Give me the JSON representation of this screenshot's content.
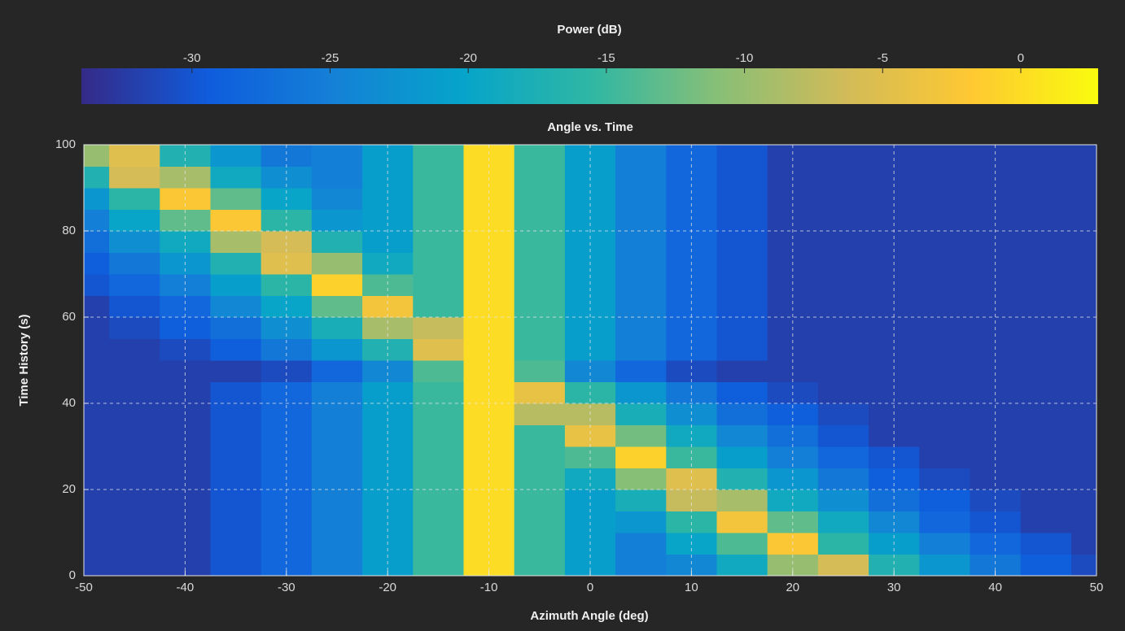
{
  "chart_data": {
    "type": "heatmap",
    "title": "Angle vs. Time",
    "xlabel": "Azimuth Angle (deg)",
    "ylabel": "Time History (s)",
    "x": [
      -50,
      -45,
      -40,
      -35,
      -30,
      -25,
      -20,
      -15,
      -10,
      -5,
      0,
      5,
      10,
      15,
      20,
      25,
      30,
      35,
      40,
      45,
      50
    ],
    "y": [
      2.5,
      7.5,
      12.5,
      17.5,
      22.5,
      27.5,
      32.5,
      37.5,
      42.5,
      47.5,
      52.5,
      57.5,
      62.5,
      67.5,
      72.5,
      77.5,
      82.5,
      87.5,
      92.5,
      97.5
    ],
    "z": [
      [
        -32,
        -32,
        -32,
        -30,
        -28,
        -25,
        -21,
        -15,
        0,
        -15,
        -21,
        -25,
        -24,
        -19,
        -10,
        -6,
        -17,
        -22,
        -26,
        -29,
        -31
      ],
      [
        -32,
        -32,
        -32,
        -30,
        -28,
        -25,
        -21,
        -15,
        0,
        -15,
        -21,
        -25,
        -20,
        -14,
        -2,
        -16,
        -21,
        -25,
        -28,
        -30,
        -32
      ],
      [
        -32,
        -32,
        -32,
        -30,
        -28,
        -25,
        -21,
        -15,
        0,
        -15,
        -21,
        -22,
        -16,
        -3,
        -13,
        -19,
        -24,
        -28,
        -30,
        -32,
        -32
      ],
      [
        -32,
        -32,
        -32,
        -30,
        -28,
        -25,
        -21,
        -15,
        0,
        -15,
        -21,
        -18,
        -7,
        -9,
        -19,
        -23,
        -27,
        -29,
        -31,
        -32,
        -32
      ],
      [
        -32,
        -32,
        -32,
        -30,
        -28,
        -25,
        -21,
        -15,
        0,
        -15,
        -19,
        -11,
        -5,
        -17,
        -22,
        -26,
        -29,
        -31,
        -32,
        -32,
        -32
      ],
      [
        -32,
        -32,
        -32,
        -30,
        -28,
        -25,
        -21,
        -15,
        0,
        -15,
        -14,
        -1,
        -15,
        -21,
        -25,
        -28,
        -30,
        -32,
        -32,
        -32,
        -32
      ],
      [
        -32,
        -32,
        -32,
        -30,
        -28,
        -25,
        -21,
        -15,
        0,
        -15,
        -4,
        -12,
        -19,
        -24,
        -27,
        -30,
        -32,
        -32,
        -32,
        -32,
        -32
      ],
      [
        -32,
        -32,
        -32,
        -30,
        -28,
        -25,
        -21,
        -15,
        0,
        -8,
        -8,
        -18,
        -23,
        -27,
        -29,
        -31,
        -32,
        -32,
        -32,
        -32,
        -32
      ],
      [
        -32,
        -32,
        -32,
        -30,
        -28,
        -25,
        -21,
        -15,
        0,
        -4,
        -16,
        -22,
        -26,
        -29,
        -31,
        -32,
        -32,
        -32,
        -32,
        -32,
        -32
      ],
      [
        -32,
        -32,
        -32,
        -32,
        -31,
        -28,
        -24,
        -14,
        0,
        -14,
        -24,
        -28,
        -31,
        -32,
        -32,
        -32,
        -32,
        -32,
        -32,
        -32,
        -32
      ],
      [
        -32,
        -32,
        -31,
        -29,
        -26,
        -22,
        -17,
        -5,
        0,
        -15,
        -21,
        -25,
        -28,
        -30,
        -32,
        -32,
        -32,
        -32,
        -32,
        -32,
        -32
      ],
      [
        -32,
        -31,
        -29,
        -27,
        -23,
        -18,
        -9,
        -7,
        0,
        -15,
        -21,
        -25,
        -28,
        -30,
        -32,
        -32,
        -32,
        -32,
        -32,
        -32,
        -32
      ],
      [
        -32,
        -30,
        -28,
        -24,
        -20,
        -13,
        -3,
        -15,
        0,
        -15,
        -21,
        -25,
        -28,
        -30,
        -32,
        -32,
        -32,
        -32,
        -32,
        -32,
        -32
      ],
      [
        -30,
        -28,
        -25,
        -21,
        -16,
        -1,
        -14,
        -15,
        0,
        -15,
        -21,
        -25,
        -28,
        -30,
        -32,
        -32,
        -32,
        -32,
        -32,
        -32,
        -32
      ],
      [
        -29,
        -26,
        -22,
        -17,
        -5,
        -10,
        -19,
        -15,
        0,
        -15,
        -21,
        -25,
        -28,
        -30,
        -32,
        -32,
        -32,
        -32,
        -32,
        -32,
        -32
      ],
      [
        -27,
        -23,
        -19,
        -9,
        -6,
        -17,
        -21,
        -15,
        0,
        -15,
        -21,
        -25,
        -28,
        -30,
        -32,
        -32,
        -32,
        -32,
        -32,
        -32,
        -32
      ],
      [
        -25,
        -20,
        -13,
        -2,
        -16,
        -22,
        -21,
        -15,
        0,
        -15,
        -21,
        -25,
        -28,
        -30,
        -32,
        -32,
        -32,
        -32,
        -32,
        -32,
        -32
      ],
      [
        -22,
        -16,
        -2,
        -13,
        -20,
        -24,
        -21,
        -15,
        0,
        -15,
        -21,
        -25,
        -28,
        -30,
        -32,
        -32,
        -32,
        -32,
        -32,
        -32,
        -32
      ],
      [
        -17,
        -6,
        -9,
        -19,
        -23,
        -25,
        -21,
        -15,
        0,
        -15,
        -21,
        -25,
        -28,
        -30,
        -32,
        -32,
        -32,
        -32,
        -32,
        -32,
        -32
      ],
      [
        -10,
        -5,
        -17,
        -22,
        -26,
        -25,
        -21,
        -15,
        0,
        -15,
        -21,
        -25,
        -28,
        -30,
        -32,
        -32,
        -32,
        -32,
        -32,
        -32,
        -32
      ]
    ],
    "xlim": [
      -50,
      50
    ],
    "ylim": [
      0,
      100
    ],
    "xticks": [
      -50,
      -40,
      -30,
      -20,
      -10,
      0,
      10,
      20,
      30,
      40,
      50
    ],
    "yticks": [
      0,
      20,
      40,
      60,
      80,
      100
    ],
    "grid": true,
    "colormap": [
      "#352a87",
      "#0f5cdd",
      "#1481d6",
      "#06a4ca",
      "#2eb7a4",
      "#87bf77",
      "#d1bb59",
      "#fec832",
      "#f9fb0e"
    ],
    "colorbar": {
      "title": "Power (dB)",
      "clim": [
        -34,
        2.8
      ],
      "ticks": [
        -30,
        -25,
        -20,
        -15,
        -10,
        -5,
        0
      ]
    }
  }
}
